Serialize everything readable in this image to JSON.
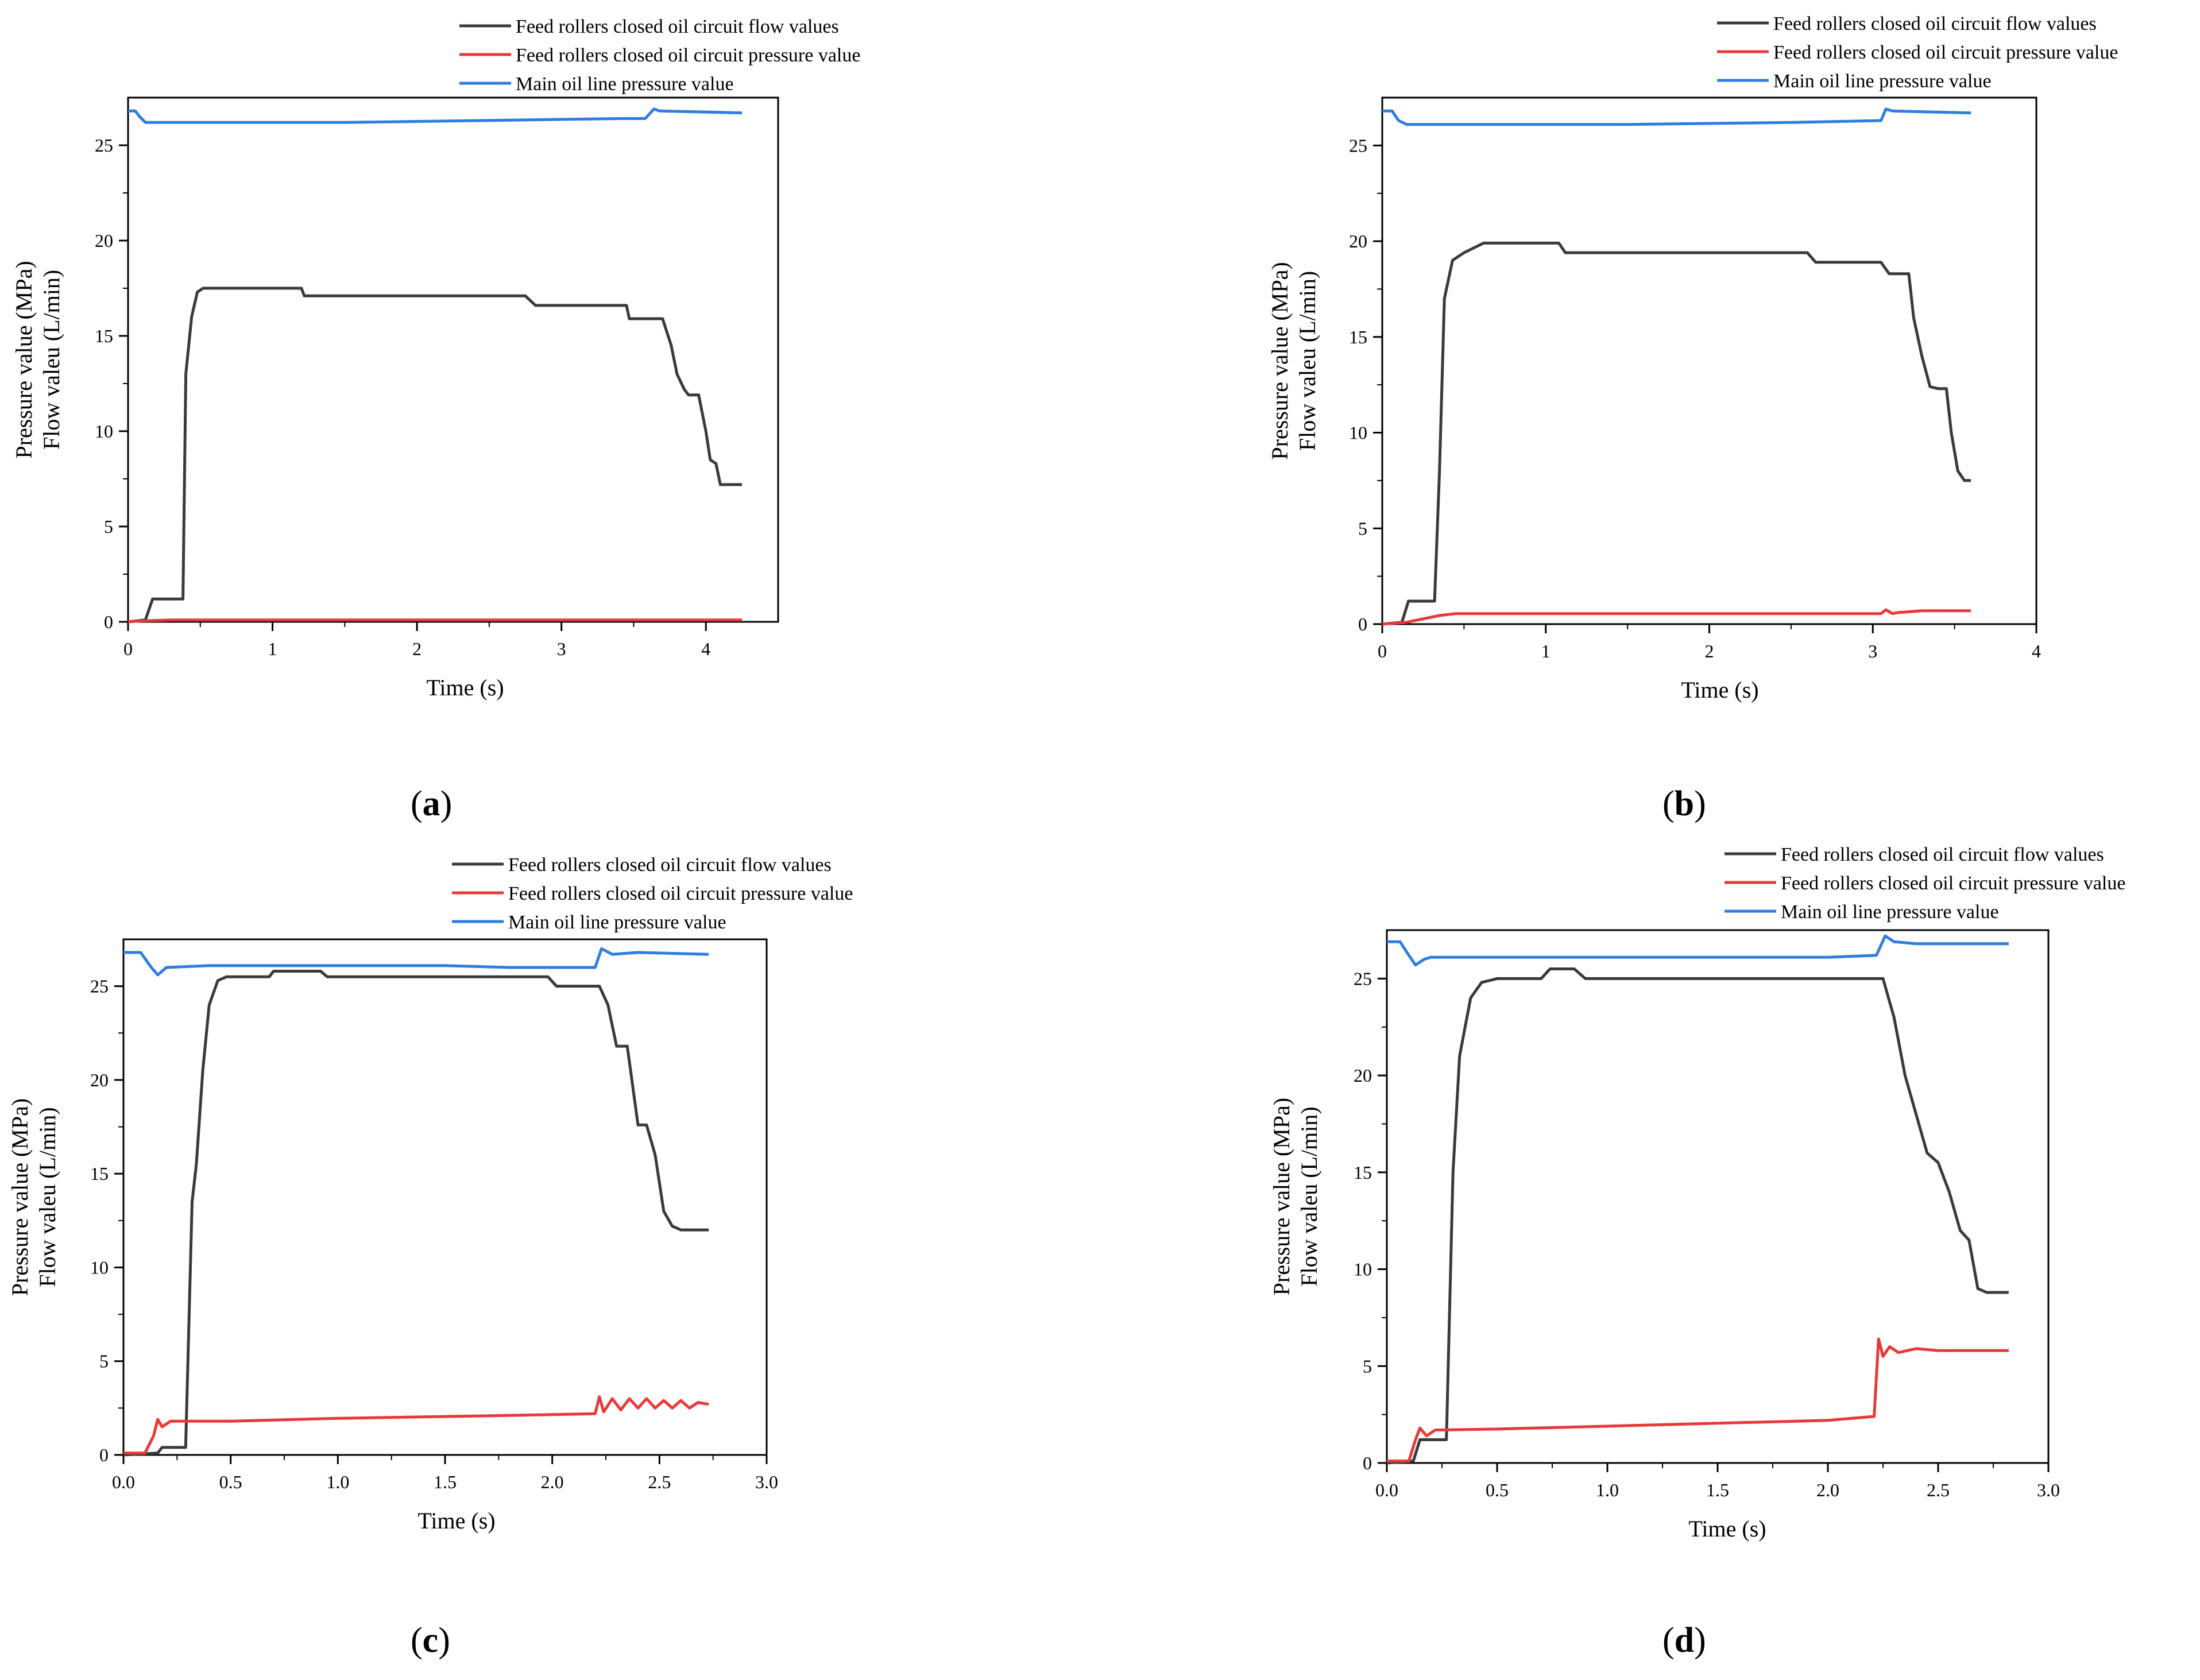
{
  "colors": {
    "flow": "#3a3a3a",
    "circuit_pressure": "#e8393a",
    "main_pressure": "#2f7ddf",
    "axis": "#000000"
  },
  "chart_data": [
    {
      "id": "a",
      "type": "line",
      "panel_label": "a",
      "xlabel": "Time (s)",
      "ylabel_lines": [
        "Pressure value (MPa)",
        "Flow valeu (L/min)"
      ],
      "xlim": [
        0,
        4.5
      ],
      "ylim": [
        0,
        27.5
      ],
      "xticks": [
        0,
        1,
        2,
        3,
        4
      ],
      "xtick_labels": [
        "0",
        "1",
        "2",
        "3",
        "4"
      ],
      "yticks": [
        0,
        5,
        10,
        15,
        20,
        25
      ],
      "ytick_labels": [
        "0",
        "5",
        "10",
        "15",
        "20",
        "25"
      ],
      "series": [
        {
          "name": "Feed rollers closed oil circuit flow values",
          "color_key": "flow",
          "x": [
            0,
            0.12,
            0.17,
            0.38,
            0.4,
            0.44,
            0.48,
            0.52,
            1.2,
            1.22,
            2.75,
            2.82,
            3.45,
            3.47,
            3.7,
            3.76,
            3.8,
            3.85,
            3.88,
            3.95,
            4.0,
            4.03,
            4.07,
            4.1,
            4.25
          ],
          "y": [
            0,
            0.1,
            1.2,
            1.2,
            13,
            16,
            17.3,
            17.5,
            17.5,
            17.1,
            17.1,
            16.6,
            16.6,
            15.9,
            15.9,
            14.5,
            13.0,
            12.2,
            11.9,
            11.9,
            10.0,
            8.5,
            8.3,
            7.2,
            7.2
          ]
        },
        {
          "name": "Feed rollers closed oil circuit pressure value",
          "color_key": "circuit_pressure",
          "x": [
            0,
            0.1,
            0.3,
            4.25
          ],
          "y": [
            0,
            0.05,
            0.1,
            0.1
          ]
        },
        {
          "name": "Main oil line pressure value",
          "color_key": "main_pressure",
          "x": [
            0,
            0.05,
            0.08,
            0.12,
            0.5,
            1.5,
            2.5,
            3.4,
            3.58,
            3.64,
            3.68,
            4.25
          ],
          "y": [
            26.8,
            26.8,
            26.5,
            26.2,
            26.2,
            26.2,
            26.3,
            26.4,
            26.4,
            26.9,
            26.8,
            26.7
          ]
        }
      ]
    },
    {
      "id": "b",
      "type": "line",
      "panel_label": "b",
      "xlabel": "Time (s)",
      "ylabel_lines": [
        "Pressure value (MPa)",
        "Flow valeu (L/min)"
      ],
      "xlim": [
        0,
        4
      ],
      "ylim": [
        0,
        27.5
      ],
      "xticks": [
        0,
        1,
        2,
        3,
        4
      ],
      "xtick_labels": [
        "0",
        "1",
        "2",
        "3",
        "4"
      ],
      "yticks": [
        0,
        5,
        10,
        15,
        20,
        25
      ],
      "ytick_labels": [
        "0",
        "5",
        "10",
        "15",
        "20",
        "25"
      ],
      "series": [
        {
          "name": "Feed rollers closed oil circuit flow values",
          "color_key": "flow",
          "x": [
            0,
            0.12,
            0.16,
            0.32,
            0.35,
            0.38,
            0.43,
            0.5,
            0.62,
            1.08,
            1.12,
            1.5,
            2.0,
            2.6,
            2.65,
            3.05,
            3.1,
            3.22,
            3.25,
            3.3,
            3.35,
            3.4,
            3.45,
            3.48,
            3.52,
            3.56,
            3.6
          ],
          "y": [
            0,
            0.1,
            1.2,
            1.2,
            8.0,
            17.0,
            19.0,
            19.4,
            19.9,
            19.9,
            19.4,
            19.4,
            19.4,
            19.4,
            18.9,
            18.9,
            18.3,
            18.3,
            16.0,
            14.0,
            12.4,
            12.3,
            12.3,
            10.0,
            8.0,
            7.5,
            7.5
          ]
        },
        {
          "name": "Feed rollers closed oil circuit pressure value",
          "color_key": "circuit_pressure",
          "x": [
            0,
            0.15,
            0.35,
            0.45,
            1.5,
            3.05,
            3.08,
            3.12,
            3.15,
            3.3,
            3.6
          ],
          "y": [
            0,
            0.1,
            0.45,
            0.55,
            0.55,
            0.55,
            0.75,
            0.55,
            0.6,
            0.7,
            0.7
          ]
        },
        {
          "name": "Main oil line pressure value",
          "color_key": "main_pressure",
          "x": [
            0,
            0.06,
            0.1,
            0.15,
            0.5,
            1.5,
            2.5,
            3.05,
            3.08,
            3.12,
            3.6
          ],
          "y": [
            26.8,
            26.8,
            26.3,
            26.1,
            26.1,
            26.1,
            26.2,
            26.3,
            26.9,
            26.8,
            26.7
          ]
        }
      ]
    },
    {
      "id": "c",
      "type": "line",
      "panel_label": "c",
      "xlabel": "Time (s)",
      "ylabel_lines": [
        "Pressure value (MPa)",
        "Flow valeu (L/min)"
      ],
      "xlim": [
        0,
        3.0
      ],
      "ylim": [
        0,
        27.5
      ],
      "xticks": [
        0,
        0.5,
        1.0,
        1.5,
        2.0,
        2.5,
        3.0
      ],
      "xtick_labels": [
        "0.0",
        "0.5",
        "1.0",
        "1.5",
        "2.0",
        "2.5",
        "3.0"
      ],
      "yticks": [
        0,
        5,
        10,
        15,
        20,
        25
      ],
      "ytick_labels": [
        "0",
        "5",
        "10",
        "15",
        "20",
        "25"
      ],
      "series": [
        {
          "name": "Feed rollers closed oil circuit flow values",
          "color_key": "flow",
          "x": [
            0,
            0.16,
            0.18,
            0.29,
            0.32,
            0.34,
            0.37,
            0.4,
            0.44,
            0.48,
            0.68,
            0.7,
            0.92,
            0.95,
            1.8,
            1.98,
            2.02,
            2.22,
            2.26,
            2.3,
            2.35,
            2.4,
            2.44,
            2.48,
            2.52,
            2.56,
            2.6,
            2.65,
            2.73
          ],
          "y": [
            0,
            0.1,
            0.4,
            0.4,
            13.5,
            15.5,
            20.5,
            24.0,
            25.3,
            25.5,
            25.5,
            25.8,
            25.8,
            25.5,
            25.5,
            25.5,
            25.0,
            25.0,
            24.0,
            21.8,
            21.8,
            17.6,
            17.6,
            16.0,
            13.0,
            12.2,
            12.0,
            12.0,
            12.0
          ]
        },
        {
          "name": "Feed rollers closed oil circuit pressure value",
          "color_key": "circuit_pressure",
          "x": [
            0,
            0.1,
            0.14,
            0.16,
            0.18,
            0.22,
            0.5,
            1.0,
            1.5,
            2.0,
            2.2,
            2.22,
            2.24,
            2.28,
            2.32,
            2.36,
            2.4,
            2.44,
            2.48,
            2.52,
            2.56,
            2.6,
            2.64,
            2.68,
            2.73
          ],
          "y": [
            0.1,
            0.1,
            1.0,
            1.9,
            1.5,
            1.8,
            1.8,
            1.95,
            2.05,
            2.15,
            2.2,
            3.1,
            2.3,
            3.0,
            2.4,
            3.0,
            2.5,
            3.0,
            2.5,
            2.9,
            2.5,
            2.9,
            2.5,
            2.8,
            2.7
          ]
        },
        {
          "name": "Main oil line pressure value",
          "color_key": "main_pressure",
          "x": [
            0,
            0.08,
            0.13,
            0.16,
            0.2,
            0.4,
            1.0,
            1.5,
            1.8,
            2.2,
            2.23,
            2.28,
            2.4,
            2.73
          ],
          "y": [
            26.8,
            26.8,
            26.0,
            25.6,
            26.0,
            26.1,
            26.1,
            26.1,
            26.0,
            26.0,
            27.0,
            26.7,
            26.8,
            26.7
          ]
        }
      ]
    },
    {
      "id": "d",
      "type": "line",
      "panel_label": "d",
      "xlabel": "Time (s)",
      "ylabel_lines": [
        "Pressure value (MPa)",
        "Flow valeu (L/min)"
      ],
      "xlim": [
        0,
        3.0
      ],
      "ylim": [
        0,
        27.5
      ],
      "xticks": [
        0,
        0.5,
        1.0,
        1.5,
        2.0,
        2.5,
        3.0
      ],
      "xtick_labels": [
        "0.0",
        "0.5",
        "1.0",
        "1.5",
        "2.0",
        "2.5",
        "3.0"
      ],
      "yticks": [
        0,
        5,
        10,
        15,
        20,
        25
      ],
      "ytick_labels": [
        "0",
        "5",
        "10",
        "15",
        "20",
        "25"
      ],
      "series": [
        {
          "name": "Feed rollers closed oil circuit flow values",
          "color_key": "flow",
          "x": [
            0,
            0.12,
            0.15,
            0.27,
            0.3,
            0.33,
            0.38,
            0.43,
            0.5,
            0.7,
            0.74,
            0.85,
            0.9,
            1.5,
            2.25,
            2.3,
            2.35,
            2.4,
            2.45,
            2.5,
            2.55,
            2.6,
            2.64,
            2.68,
            2.72,
            2.76,
            2.82
          ],
          "y": [
            0,
            0.1,
            1.2,
            1.2,
            15.0,
            21.0,
            24.0,
            24.8,
            25.0,
            25.0,
            25.5,
            25.5,
            25.0,
            25.0,
            25.0,
            23.0,
            20.0,
            18.0,
            16.0,
            15.5,
            14.0,
            12.0,
            11.5,
            9.0,
            8.8,
            8.8,
            8.8
          ]
        },
        {
          "name": "Feed rollers closed oil circuit pressure value",
          "color_key": "circuit_pressure",
          "x": [
            0,
            0.1,
            0.13,
            0.15,
            0.18,
            0.22,
            0.5,
            1.0,
            1.5,
            2.0,
            2.21,
            2.23,
            2.25,
            2.28,
            2.32,
            2.4,
            2.5,
            2.82
          ],
          "y": [
            0.1,
            0.1,
            1.2,
            1.8,
            1.4,
            1.7,
            1.75,
            1.9,
            2.05,
            2.2,
            2.4,
            6.4,
            5.5,
            6.0,
            5.7,
            5.9,
            5.8,
            5.8
          ]
        },
        {
          "name": "Main oil line pressure value",
          "color_key": "main_pressure",
          "x": [
            0,
            0.06,
            0.1,
            0.13,
            0.17,
            0.2,
            0.5,
            1.0,
            1.5,
            2.0,
            2.22,
            2.26,
            2.3,
            2.4,
            2.82
          ],
          "y": [
            26.9,
            26.9,
            26.2,
            25.7,
            26.0,
            26.1,
            26.1,
            26.1,
            26.1,
            26.1,
            26.2,
            27.2,
            26.9,
            26.8,
            26.8
          ]
        }
      ]
    }
  ]
}
